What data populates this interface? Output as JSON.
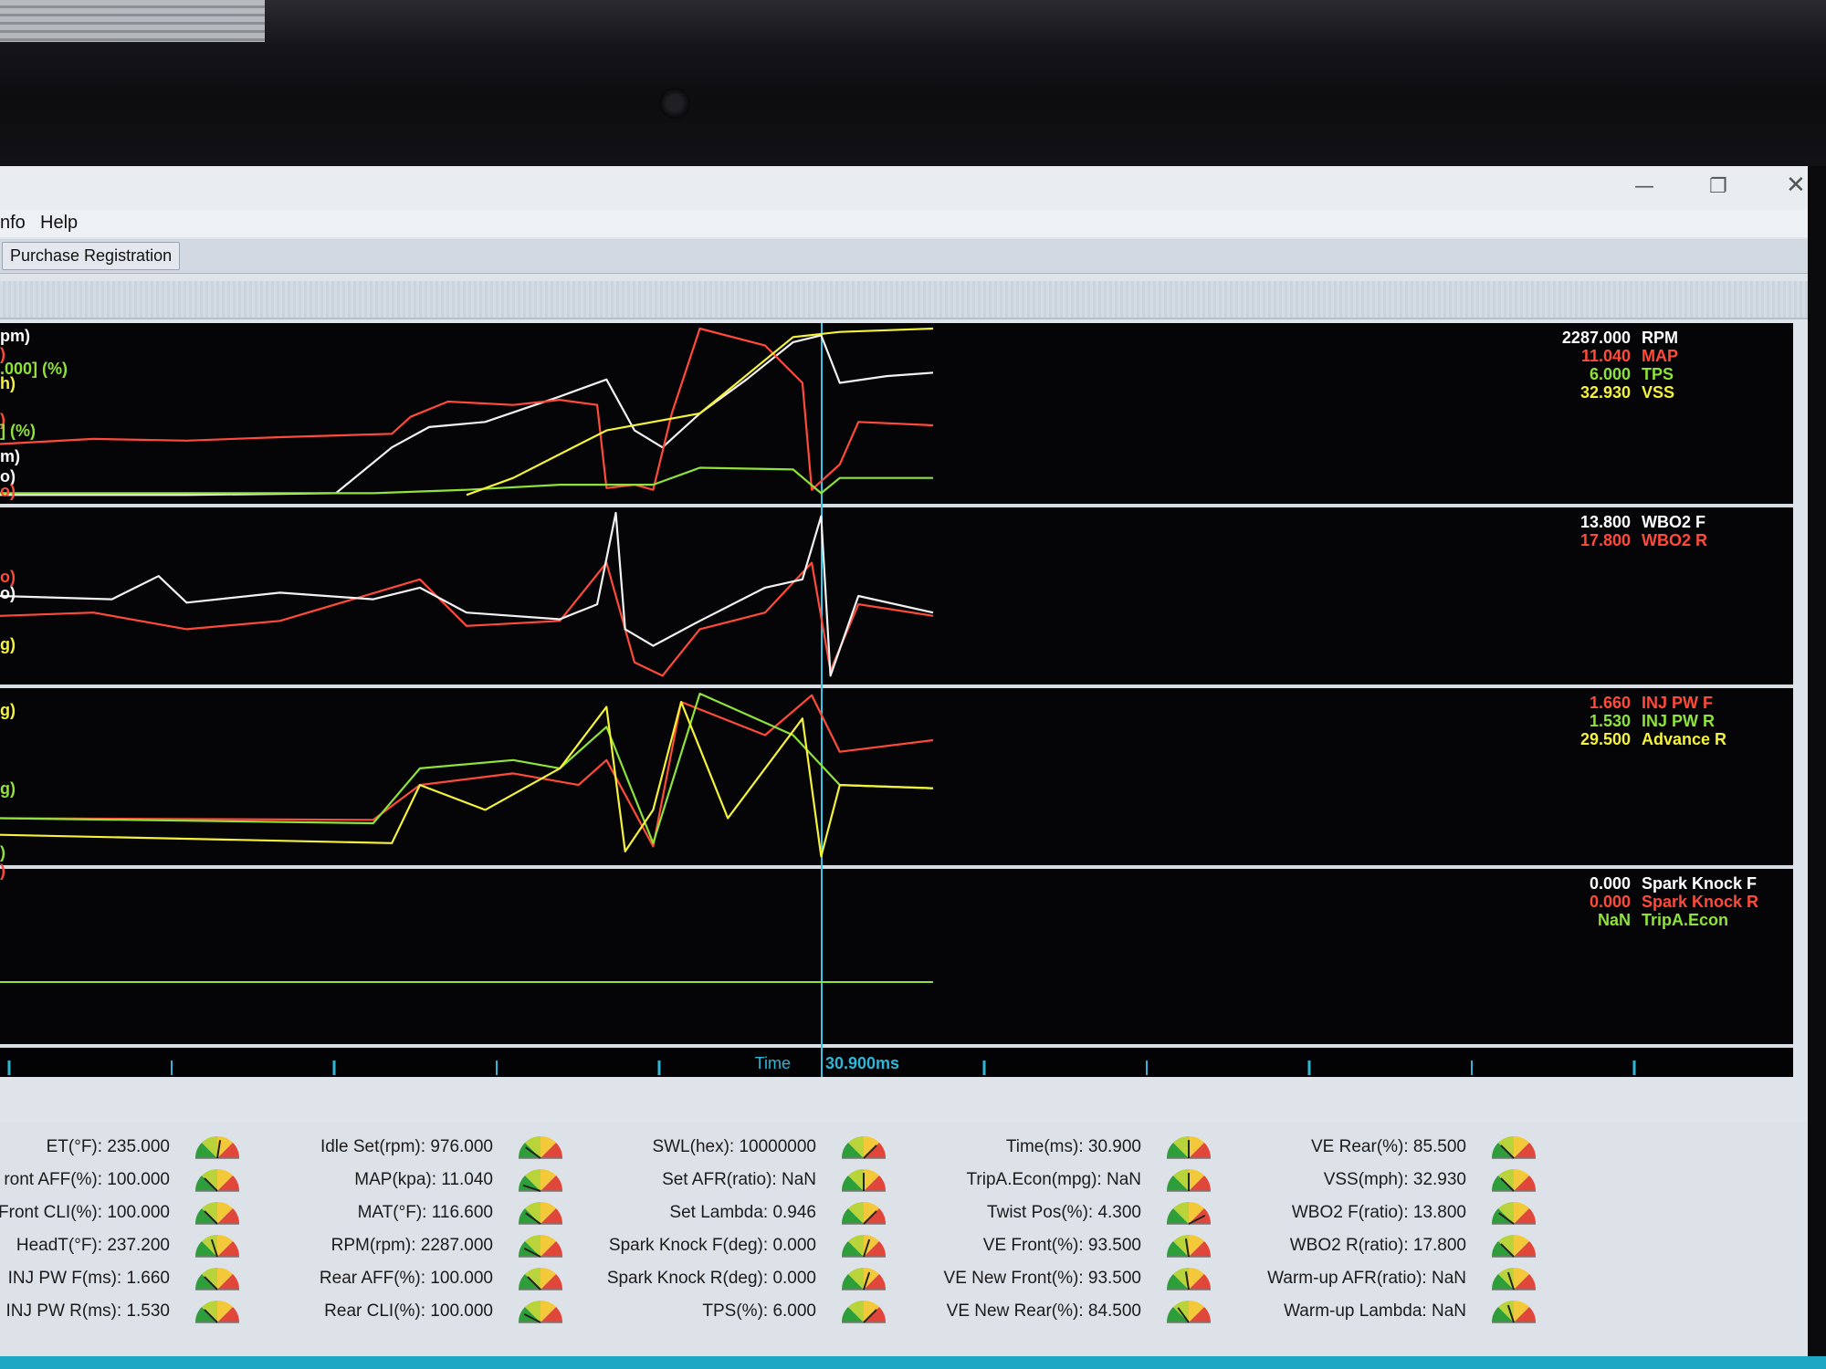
{
  "window": {
    "controls": {
      "minimize": "—",
      "maximize": "❐",
      "close": "✕"
    }
  },
  "menu": {
    "items": [
      "nfo",
      "Help"
    ]
  },
  "toolbar": {
    "purchase_label": "Purchase Registration"
  },
  "scope": {
    "time_label": "Time",
    "cursor_value": "30.900ms",
    "left_label_fragments": [
      "pm)",
      ")",
      ".000] (%)",
      "h)",
      ")",
      "] (%)",
      "m)",
      "o)",
      "o)",
      "o)",
      "o)",
      "g)",
      "g)",
      "g)",
      ")",
      ")"
    ],
    "panels": [
      {
        "channels": [
          {
            "value": "2287.000",
            "name": "RPM",
            "color": "#ffffff"
          },
          {
            "value": "11.040",
            "name": "MAP",
            "color": "#ff4a3a"
          },
          {
            "value": "6.000",
            "name": "TPS",
            "color": "#8ee23a"
          },
          {
            "value": "32.930",
            "name": "VSS",
            "color": "#f4f23a"
          }
        ]
      },
      {
        "channels": [
          {
            "value": "13.800",
            "name": "WBO2 F",
            "color": "#ffffff"
          },
          {
            "value": "17.800",
            "name": "WBO2 R",
            "color": "#ff4a3a"
          }
        ]
      },
      {
        "channels": [
          {
            "value": "1.660",
            "name": "INJ PW F",
            "color": "#ff4a3a"
          },
          {
            "value": "1.530",
            "name": "INJ PW R",
            "color": "#8ee23a"
          },
          {
            "value": "29.500",
            "name": "Advance R",
            "color": "#f4f23a"
          }
        ]
      },
      {
        "channels": [
          {
            "value": "0.000",
            "name": "Spark Knock F",
            "color": "#ffffff"
          },
          {
            "value": "0.000",
            "name": "Spark Knock R",
            "color": "#ff4a3a"
          },
          {
            "value": "NaN",
            "name": "TripA.Econ",
            "color": "#8ee23a"
          }
        ]
      }
    ]
  },
  "traces": {
    "RPM": [
      {
        "t": 0,
        "v": 0.02
      },
      {
        "t": 0.2,
        "v": 0.02
      },
      {
        "t": 0.36,
        "v": 0.03
      },
      {
        "t": 0.42,
        "v": 0.3
      },
      {
        "t": 0.46,
        "v": 0.42
      },
      {
        "t": 0.52,
        "v": 0.45
      },
      {
        "t": 0.6,
        "v": 0.6
      },
      {
        "t": 0.65,
        "v": 0.7
      },
      {
        "t": 0.68,
        "v": 0.4
      },
      {
        "t": 0.71,
        "v": 0.3
      },
      {
        "t": 0.75,
        "v": 0.5
      },
      {
        "t": 0.8,
        "v": 0.7
      },
      {
        "t": 0.85,
        "v": 0.92
      },
      {
        "t": 0.88,
        "v": 0.96
      },
      {
        "t": 0.9,
        "v": 0.68
      },
      {
        "t": 0.95,
        "v": 0.72
      },
      {
        "t": 1,
        "v": 0.74
      }
    ],
    "MAP": [
      {
        "t": 0,
        "v": 0.32
      },
      {
        "t": 0.1,
        "v": 0.35
      },
      {
        "t": 0.2,
        "v": 0.34
      },
      {
        "t": 0.3,
        "v": 0.36
      },
      {
        "t": 0.42,
        "v": 0.38
      },
      {
        "t": 0.44,
        "v": 0.48
      },
      {
        "t": 0.48,
        "v": 0.57
      },
      {
        "t": 0.55,
        "v": 0.55
      },
      {
        "t": 0.6,
        "v": 0.58
      },
      {
        "t": 0.64,
        "v": 0.55
      },
      {
        "t": 0.65,
        "v": 0.06
      },
      {
        "t": 0.68,
        "v": 0.08
      },
      {
        "t": 0.7,
        "v": 0.05
      },
      {
        "t": 0.72,
        "v": 0.5
      },
      {
        "t": 0.75,
        "v": 1.0
      },
      {
        "t": 0.82,
        "v": 0.9
      },
      {
        "t": 0.86,
        "v": 0.68
      },
      {
        "t": 0.87,
        "v": 0.05
      },
      {
        "t": 0.9,
        "v": 0.2
      },
      {
        "t": 0.92,
        "v": 0.45
      },
      {
        "t": 1,
        "v": 0.43
      }
    ],
    "TPS": [
      {
        "t": 0,
        "v": 0.03
      },
      {
        "t": 0.4,
        "v": 0.03
      },
      {
        "t": 0.5,
        "v": 0.05
      },
      {
        "t": 0.6,
        "v": 0.08
      },
      {
        "t": 0.7,
        "v": 0.08
      },
      {
        "t": 0.75,
        "v": 0.18
      },
      {
        "t": 0.85,
        "v": 0.17
      },
      {
        "t": 0.88,
        "v": 0.03
      },
      {
        "t": 0.9,
        "v": 0.12
      },
      {
        "t": 1,
        "v": 0.12
      }
    ],
    "VSS": [
      {
        "t": 0.5,
        "v": 0.02
      },
      {
        "t": 0.55,
        "v": 0.12
      },
      {
        "t": 0.65,
        "v": 0.4
      },
      {
        "t": 0.75,
        "v": 0.5
      },
      {
        "t": 0.85,
        "v": 0.95
      },
      {
        "t": 0.9,
        "v": 0.98
      },
      {
        "t": 1,
        "v": 1.0
      }
    ],
    "WBO2F": [
      {
        "t": 0,
        "v": 0.5
      },
      {
        "t": 0.12,
        "v": 0.48
      },
      {
        "t": 0.17,
        "v": 0.62
      },
      {
        "t": 0.2,
        "v": 0.46
      },
      {
        "t": 0.3,
        "v": 0.52
      },
      {
        "t": 0.4,
        "v": 0.48
      },
      {
        "t": 0.45,
        "v": 0.55
      },
      {
        "t": 0.5,
        "v": 0.4
      },
      {
        "t": 0.6,
        "v": 0.36
      },
      {
        "t": 0.64,
        "v": 0.45
      },
      {
        "t": 0.66,
        "v": 1.0
      },
      {
        "t": 0.67,
        "v": 0.3
      },
      {
        "t": 0.7,
        "v": 0.2
      },
      {
        "t": 0.75,
        "v": 0.35
      },
      {
        "t": 0.82,
        "v": 0.55
      },
      {
        "t": 0.86,
        "v": 0.6
      },
      {
        "t": 0.88,
        "v": 0.98
      },
      {
        "t": 0.89,
        "v": 0.02
      },
      {
        "t": 0.92,
        "v": 0.5
      },
      {
        "t": 1,
        "v": 0.4
      }
    ],
    "WBO2R": [
      {
        "t": 0,
        "v": 0.38
      },
      {
        "t": 0.1,
        "v": 0.4
      },
      {
        "t": 0.2,
        "v": 0.3
      },
      {
        "t": 0.3,
        "v": 0.35
      },
      {
        "t": 0.45,
        "v": 0.6
      },
      {
        "t": 0.5,
        "v": 0.32
      },
      {
        "t": 0.6,
        "v": 0.35
      },
      {
        "t": 0.65,
        "v": 0.7
      },
      {
        "t": 0.68,
        "v": 0.1
      },
      {
        "t": 0.71,
        "v": 0.02
      },
      {
        "t": 0.75,
        "v": 0.3
      },
      {
        "t": 0.82,
        "v": 0.4
      },
      {
        "t": 0.87,
        "v": 0.7
      },
      {
        "t": 0.89,
        "v": 0.05
      },
      {
        "t": 0.92,
        "v": 0.45
      },
      {
        "t": 1,
        "v": 0.38
      }
    ],
    "INJF": [
      {
        "t": 0,
        "v": 0.25
      },
      {
        "t": 0.4,
        "v": 0.24
      },
      {
        "t": 0.45,
        "v": 0.45
      },
      {
        "t": 0.55,
        "v": 0.52
      },
      {
        "t": 0.62,
        "v": 0.45
      },
      {
        "t": 0.65,
        "v": 0.6
      },
      {
        "t": 0.7,
        "v": 0.08
      },
      {
        "t": 0.73,
        "v": 0.95
      },
      {
        "t": 0.82,
        "v": 0.75
      },
      {
        "t": 0.87,
        "v": 0.99
      },
      {
        "t": 0.9,
        "v": 0.65
      },
      {
        "t": 1,
        "v": 0.72
      }
    ],
    "INJR": [
      {
        "t": 0,
        "v": 0.25
      },
      {
        "t": 0.4,
        "v": 0.22
      },
      {
        "t": 0.45,
        "v": 0.55
      },
      {
        "t": 0.55,
        "v": 0.6
      },
      {
        "t": 0.6,
        "v": 0.55
      },
      {
        "t": 0.65,
        "v": 0.8
      },
      {
        "t": 0.7,
        "v": 0.1
      },
      {
        "t": 0.75,
        "v": 1.0
      },
      {
        "t": 0.85,
        "v": 0.75
      },
      {
        "t": 0.9,
        "v": 0.45
      },
      {
        "t": 1,
        "v": 0.43
      }
    ],
    "ADV": [
      {
        "t": 0,
        "v": 0.15
      },
      {
        "t": 0.42,
        "v": 0.1
      },
      {
        "t": 0.45,
        "v": 0.45
      },
      {
        "t": 0.52,
        "v": 0.3
      },
      {
        "t": 0.6,
        "v": 0.55
      },
      {
        "t": 0.65,
        "v": 0.92
      },
      {
        "t": 0.67,
        "v": 0.05
      },
      {
        "t": 0.7,
        "v": 0.3
      },
      {
        "t": 0.73,
        "v": 0.95
      },
      {
        "t": 0.78,
        "v": 0.25
      },
      {
        "t": 0.86,
        "v": 0.85
      },
      {
        "t": 0.88,
        "v": 0.02
      },
      {
        "t": 0.9,
        "v": 0.45
      },
      {
        "t": 1,
        "v": 0.43
      }
    ]
  },
  "gauges": {
    "columns": [
      [
        "ET(°F): 235.000",
        "ront AFF(%): 100.000",
        "Front CLI(%): 100.000",
        "HeadT(°F): 237.200",
        "INJ PW F(ms): 1.660",
        "INJ PW R(ms): 1.530"
      ],
      [
        "Idle Set(rpm): 976.000",
        "MAP(kpa): 11.040",
        "MAT(°F): 116.600",
        "RPM(rpm): 2287.000",
        "Rear AFF(%): 100.000",
        "Rear CLI(%): 100.000"
      ],
      [
        "SWL(hex): 10000000",
        "Set AFR(ratio): NaN",
        "Set Lambda: 0.946",
        "Spark Knock F(deg): 0.000",
        "Spark Knock R(deg): 0.000",
        "TPS(%): 6.000"
      ],
      [
        "Time(ms): 30.900",
        "TripA.Econ(mpg): NaN",
        "Twist Pos(%): 4.300",
        "VE Front(%): 93.500",
        "VE New Front(%): 93.500",
        "VE New Rear(%): 84.500"
      ],
      [
        "VE Rear(%): 85.500",
        "VSS(mph): 32.930",
        "WBO2 F(ratio): 13.800",
        "WBO2 R(ratio): 17.800",
        "Warm-up AFR(ratio): NaN",
        "Warm-up Lambda: NaN"
      ]
    ],
    "needles": [
      [
        0.55,
        0.25,
        0.25,
        0.4,
        0.25,
        0.25
      ],
      [
        0.2,
        0.1,
        0.2,
        0.15,
        0.25,
        0.15
      ],
      [
        0.75,
        0.5,
        0.75,
        0.6,
        0.6,
        0.75
      ],
      [
        0.5,
        0.5,
        0.85,
        0.45,
        0.45,
        0.3
      ],
      [
        0.25,
        0.25,
        0.2,
        0.25,
        0.4,
        0.4
      ]
    ]
  }
}
